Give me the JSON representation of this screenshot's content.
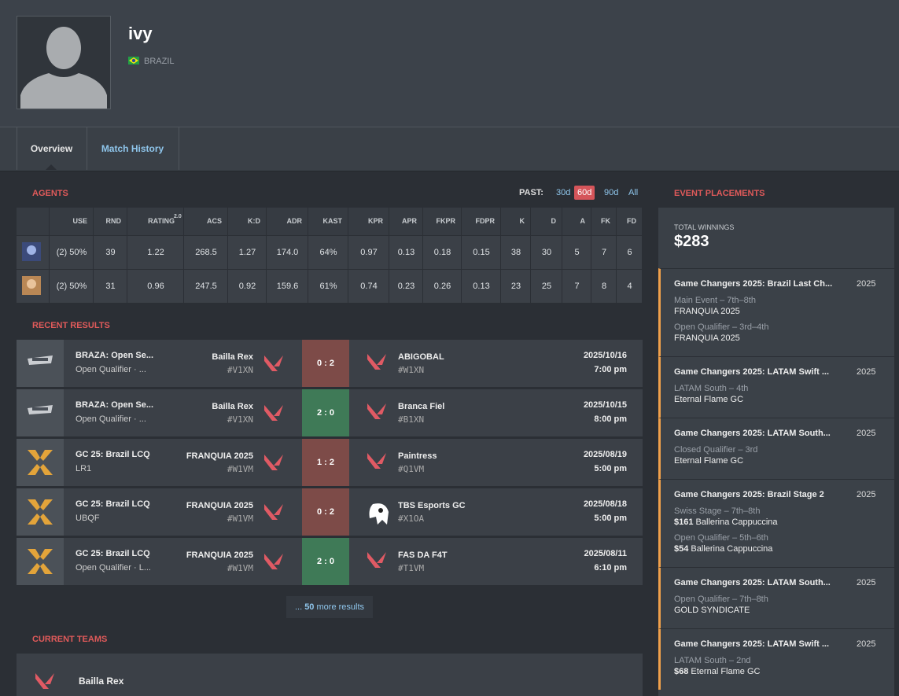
{
  "profile": {
    "name": "ivy",
    "country": "BRAZIL"
  },
  "tabs": [
    "Overview",
    "Match History"
  ],
  "agents": {
    "title": "AGENTS",
    "past_label": "PAST:",
    "periods": [
      "30d",
      "60d",
      "90d",
      "All"
    ],
    "columns": [
      "USE",
      "RND",
      "RATING",
      "ACS",
      "K:D",
      "ADR",
      "KAST",
      "KPR",
      "APR",
      "FKPR",
      "FDPR",
      "K",
      "D",
      "A",
      "FK",
      "FD"
    ],
    "rating_sup": "2.0",
    "rows": [
      [
        "(2) 50%",
        "39",
        "1.22",
        "268.5",
        "1.27",
        "174.0",
        "64%",
        "0.97",
        "0.13",
        "0.18",
        "0.15",
        "38",
        "30",
        "5",
        "7",
        "6"
      ],
      [
        "(2) 50%",
        "31",
        "0.96",
        "247.5",
        "0.92",
        "159.6",
        "61%",
        "0.74",
        "0.23",
        "0.26",
        "0.13",
        "23",
        "25",
        "7",
        "8",
        "4"
      ]
    ]
  },
  "recent_results": {
    "title": "RECENT RESULTS",
    "matches": [
      {
        "event": "BRAZA: Open Se...",
        "stage": "Open Qualifier · ...",
        "team": "Bailla Rex",
        "team_tag": "#V1XN",
        "score": "0 : 2",
        "opponent": "ABIGOBAL",
        "opponent_tag": "#W1XN",
        "date": "2025/10/16",
        "time": "7:00 pm",
        "score_color": "#7d4b48"
      },
      {
        "event": "BRAZA: Open Se...",
        "stage": "Open Qualifier · ...",
        "team": "Bailla Rex",
        "team_tag": "#V1XN",
        "score": "2 : 0",
        "opponent": "Branca Fiel",
        "opponent_tag": "#B1XN",
        "date": "2025/10/15",
        "time": "8:00 pm",
        "score_color": "#3f7a57"
      },
      {
        "event": "GC 25: Brazil LCQ",
        "stage": "LR1",
        "team": "FRANQUIA 2025",
        "team_tag": "#W1VM",
        "score": "1 : 2",
        "opponent": "Paintress",
        "opponent_tag": "#Q1VM",
        "date": "2025/08/19",
        "time": "5:00 pm",
        "score_color": "#7d4b48"
      },
      {
        "event": "GC 25: Brazil LCQ",
        "stage": "UBQF",
        "team": "FRANQUIA 2025",
        "team_tag": "#W1VM",
        "score": "0 : 2",
        "opponent": "TBS Esports GC",
        "opponent_tag": "#X1OA",
        "date": "2025/08/18",
        "time": "5:00 pm",
        "score_color": "#7d4b48"
      },
      {
        "event": "GC 25: Brazil LCQ",
        "stage": "Open Qualifier · L...",
        "team": "FRANQUIA 2025",
        "team_tag": "#W1VM",
        "score": "2 : 0",
        "opponent": "FAS DA F4T",
        "opponent_tag": "#T1VM",
        "date": "2025/08/11",
        "time": "6:10 pm",
        "score_color": "#3f7a57"
      }
    ],
    "more_prefix": "...",
    "more_count": "50",
    "more_suffix": "more results"
  },
  "current_teams": {
    "title": "CURRENT TEAMS",
    "teams": [
      "Bailla Rex"
    ]
  },
  "event_placements": {
    "title": "EVENT PLACEMENTS",
    "total_label": "TOTAL WINNINGS",
    "total": "$283",
    "events": [
      {
        "name": "Game Changers 2025: Brazil Last Ch...",
        "year": "2025",
        "placements": [
          {
            "stage": "Main Event – 7th–8th",
            "team": "FRANQUIA 2025"
          },
          {
            "stage": "Open Qualifier – 3rd–4th",
            "team": "FRANQUIA 2025"
          }
        ]
      },
      {
        "name": "Game Changers 2025: LATAM Swift ...",
        "year": "2025",
        "placements": [
          {
            "stage": "LATAM South – 4th",
            "team": "Eternal Flame GC"
          }
        ]
      },
      {
        "name": "Game Changers 2025: LATAM South...",
        "year": "2025",
        "placements": [
          {
            "stage": "Closed Qualifier – 3rd",
            "team": "Eternal Flame GC"
          }
        ]
      },
      {
        "name": "Game Changers 2025: Brazil Stage 2",
        "year": "2025",
        "placements": [
          {
            "stage": "Swiss Stage – 7th–8th",
            "prize": "$161",
            "team": "Ballerina Cappuccina"
          },
          {
            "stage": "Open Qualifier – 5th–6th",
            "prize": "$54",
            "team": "Ballerina Cappuccina"
          }
        ]
      },
      {
        "name": "Game Changers 2025: LATAM South...",
        "year": "2025",
        "placements": [
          {
            "stage": "Open Qualifier – 7th–8th",
            "team": "GOLD SYNDICATE"
          }
        ]
      },
      {
        "name": "Game Changers 2025: LATAM Swift ...",
        "year": "2025",
        "placements": [
          {
            "stage": "LATAM South – 2nd",
            "prize": "$68",
            "team": "Eternal Flame GC"
          }
        ]
      }
    ]
  }
}
